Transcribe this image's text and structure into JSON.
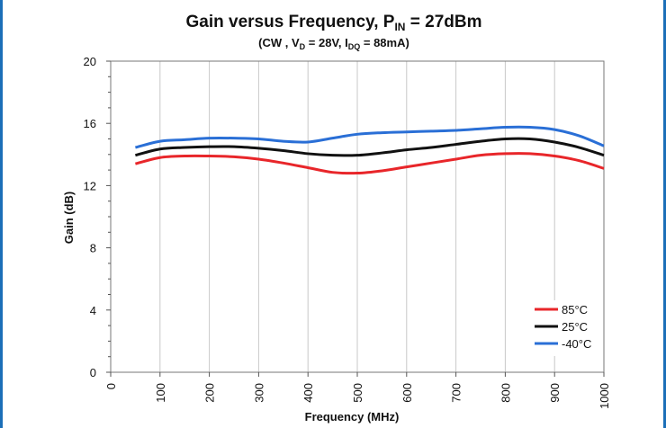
{
  "chart_data": {
    "type": "line",
    "title_main": "Gain versus Frequency, P",
    "title_sub_pin": "IN",
    "title_end": " = 27dBm",
    "subtitle": {
      "p1": "(CW , V",
      "s1": "D",
      "p2": " = 28V, I",
      "s2": "DQ",
      "p3": " = 88mA)"
    },
    "xlabel": "Frequency (MHz)",
    "ylabel": "Gain (dB)",
    "xlim": [
      0,
      1000
    ],
    "ylim": [
      0,
      20
    ],
    "xticks": [
      "0",
      "100",
      "200",
      "300",
      "400",
      "500",
      "600",
      "700",
      "800",
      "900",
      "1000"
    ],
    "yticks": [
      "0",
      "4",
      "8",
      "12",
      "16",
      "20"
    ],
    "grid": "vertical",
    "legend_position": "bottom-right",
    "x": [
      50,
      100,
      150,
      200,
      250,
      300,
      350,
      400,
      450,
      500,
      550,
      600,
      650,
      700,
      750,
      800,
      850,
      900,
      950,
      1000
    ],
    "series": [
      {
        "name": "85°C",
        "color": "#e8262a",
        "values": [
          13.4,
          13.8,
          13.9,
          13.9,
          13.85,
          13.7,
          13.45,
          13.15,
          12.85,
          12.8,
          12.95,
          13.2,
          13.45,
          13.7,
          13.95,
          14.05,
          14.05,
          13.9,
          13.6,
          13.1
        ]
      },
      {
        "name": "25°C",
        "color": "#111111",
        "values": [
          13.95,
          14.35,
          14.45,
          14.5,
          14.5,
          14.4,
          14.25,
          14.05,
          13.95,
          13.95,
          14.1,
          14.3,
          14.45,
          14.65,
          14.85,
          15.0,
          15.0,
          14.8,
          14.45,
          13.95
        ]
      },
      {
        "name": "-40°C",
        "color": "#2a6fd6",
        "values": [
          14.45,
          14.85,
          14.95,
          15.05,
          15.05,
          15.0,
          14.85,
          14.8,
          15.05,
          15.3,
          15.4,
          15.45,
          15.5,
          15.55,
          15.65,
          15.75,
          15.75,
          15.6,
          15.2,
          14.55
        ]
      }
    ]
  }
}
